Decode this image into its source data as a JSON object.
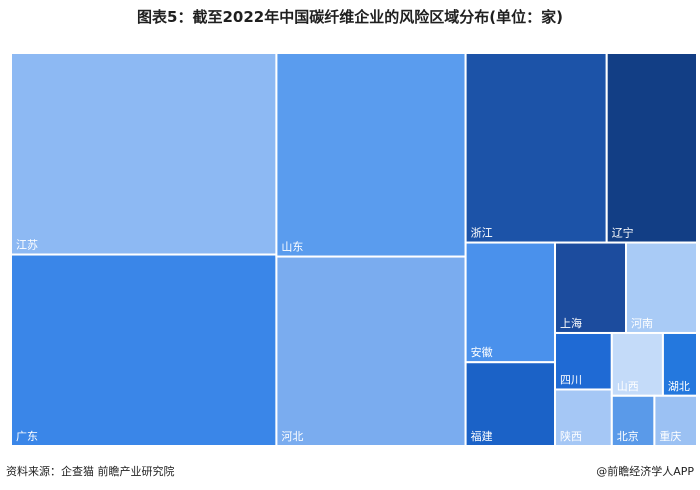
{
  "title": "图表5：截至2022年中国碳纤维企业的风险区域分布(单位：家)",
  "source_text": "资料来源：企查猫 前瞻产业研究院",
  "brand_text": "@前瞻经济学人APP",
  "chart_data": {
    "type": "treemap",
    "title": "图表5：截至2022年中国碳纤维企业的风险区域分布(单位：家)",
    "unit": "家",
    "items": [
      {
        "name": "江苏",
        "value": 100,
        "color": "#8db9f3"
      },
      {
        "name": "广东",
        "value": 95,
        "color": "#3a86e8"
      },
      {
        "name": "山东",
        "value": 72,
        "color": "#5a9cee"
      },
      {
        "name": "河北",
        "value": 67,
        "color": "#7aacef"
      },
      {
        "name": "浙江",
        "value": 50,
        "color": "#1c53a8"
      },
      {
        "name": "辽宁",
        "value": 32,
        "color": "#123e85"
      },
      {
        "name": "安徽",
        "value": 20,
        "color": "#4a91ec"
      },
      {
        "name": "福建",
        "value": 14,
        "color": "#1b62c7"
      },
      {
        "name": "上海",
        "value": 12,
        "color": "#1c4c9e"
      },
      {
        "name": "河南",
        "value": 12,
        "color": "#a9cbf6"
      },
      {
        "name": "四川",
        "value": 6,
        "color": "#1f6ad4"
      },
      {
        "name": "陕西",
        "value": 6,
        "color": "#a5c7f5"
      },
      {
        "name": "山西",
        "value": 6,
        "color": "#c4dbf9"
      },
      {
        "name": "湖北",
        "value": 4,
        "color": "#2478de"
      },
      {
        "name": "北京",
        "value": 4,
        "color": "#5a9ae9"
      },
      {
        "name": "重庆",
        "value": 4,
        "color": "#9bc1f3"
      }
    ]
  }
}
